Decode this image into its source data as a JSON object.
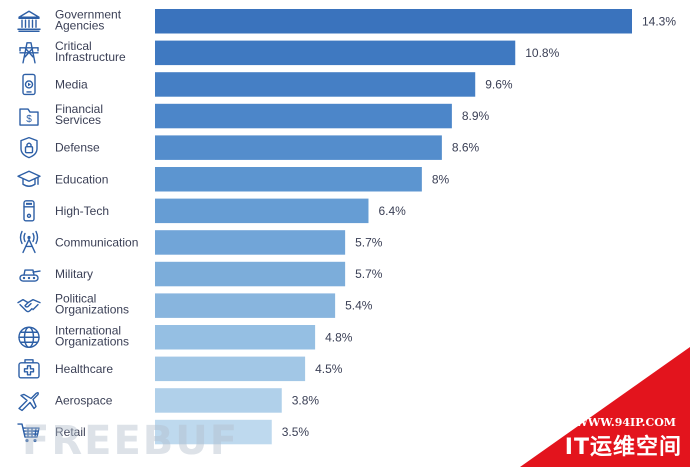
{
  "chart_data": {
    "type": "bar",
    "orientation": "horizontal",
    "title": "",
    "xlabel": "",
    "ylabel": "",
    "xlim": [
      0,
      14.3
    ],
    "categories": [
      "Government Agencies",
      "Critical Infrastructure",
      "Media",
      "Financial Services",
      "Defense",
      "Education",
      "High-Tech",
      "Communication",
      "Military",
      "Political Organizations",
      "International Organizations",
      "Healthcare",
      "Aerospace",
      "Retail"
    ],
    "label_lines": [
      [
        "Government",
        "Agencies"
      ],
      [
        "Critical",
        "Infrastructure"
      ],
      [
        "Media"
      ],
      [
        "Financial",
        "Services"
      ],
      [
        "Defense"
      ],
      [
        "Education"
      ],
      [
        "High-Tech"
      ],
      [
        "Communication"
      ],
      [
        "Military"
      ],
      [
        "Political",
        "Organizations"
      ],
      [
        "International",
        "Organizations"
      ],
      [
        "Healthcare"
      ],
      [
        "Aerospace"
      ],
      [
        "Retail"
      ]
    ],
    "values": [
      14.3,
      10.8,
      9.6,
      8.9,
      8.6,
      8,
      6.4,
      5.7,
      5.7,
      5.4,
      4.8,
      4.5,
      3.8,
      3.5
    ],
    "value_labels": [
      "14.3%",
      "10.8%",
      "9.6%",
      "8.9%",
      "8.6%",
      "8%",
      "6.4%",
      "5.7%",
      "5.7%",
      "5.4%",
      "4.8%",
      "4.5%",
      "3.8%",
      "3.5%"
    ],
    "icons": [
      "government-building-icon",
      "power-tower-icon",
      "media-phone-icon",
      "money-document-icon",
      "shield-lock-icon",
      "graduation-cap-icon",
      "server-device-icon",
      "antenna-icon",
      "tank-icon",
      "handshake-icon",
      "globe-icon",
      "medical-kit-icon",
      "airplane-icon",
      "shopping-cart-icon"
    ],
    "bar_colors": [
      "#3a73bd",
      "#3f79c1",
      "#457fc5",
      "#4c86c9",
      "#548dcc",
      "#5c95d0",
      "#669dd4",
      "#71a5d8",
      "#7cadda",
      "#88b5de",
      "#95bfe3",
      "#a2c7e6",
      "#b0d0ea",
      "#bed9ee"
    ]
  },
  "watermark": {
    "text": "FREEBUF"
  },
  "corner_banner": {
    "url": "WWW.94IP.COM",
    "title": "IT运维空间",
    "color": "#e3141d"
  }
}
